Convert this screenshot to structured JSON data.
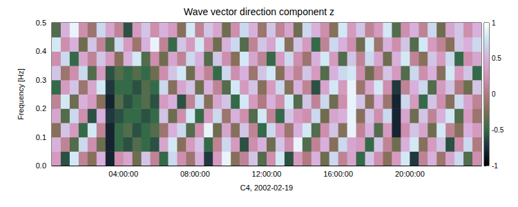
{
  "chart_data": {
    "type": "heatmap",
    "title": "Wave vector direction component z",
    "x_label": "C4, 2002-02-19",
    "y_label": "Frequency [Hz]",
    "x": [
      0.25,
      0.75,
      1.25,
      1.75,
      2.25,
      2.75,
      3.25,
      3.75,
      4.25,
      4.75,
      5.25,
      5.75,
      6.25,
      6.75,
      7.25,
      7.75,
      8.25,
      8.75,
      9.25,
      9.75,
      10.25,
      10.75,
      11.25,
      11.75,
      12.25,
      12.75,
      13.25,
      13.75,
      14.25,
      14.75,
      15.25,
      15.75,
      16.25,
      16.75,
      17.25,
      17.75,
      18.25,
      18.75,
      19.25,
      19.75,
      20.25,
      20.75,
      21.25,
      21.75,
      22.25,
      22.75,
      23.25,
      23.75
    ],
    "y": [
      0.025,
      0.075,
      0.125,
      0.175,
      0.225,
      0.275,
      0.325,
      0.375,
      0.425,
      0.475
    ],
    "values": [
      [
        0.3,
        -0.6,
        0.8,
        0.1,
        -0.2,
        0.5,
        -0.8,
        0.2,
        0.4,
        -0.3,
        0.6,
        0.1,
        -0.5,
        0.7,
        0.2,
        -0.1,
        0.5,
        -0.7,
        0.3,
        0.9,
        -0.2,
        0.1,
        0.6,
        -0.4,
        0.2,
        0.8,
        -0.6,
        0.3,
        0.0,
        0.5,
        -0.3,
        0.7,
        0.1,
        0.4,
        -0.5,
        0.6,
        0.2,
        -0.2,
        0.3,
        0.8,
        -0.7,
        0.1,
        0.5,
        -0.1,
        0.4,
        0.7,
        -0.4,
        0.2
      ],
      [
        0.5,
        0.1,
        -0.4,
        0.7,
        0.2,
        -0.3,
        -0.8,
        -0.5,
        -0.6,
        -0.4,
        -0.5,
        -0.6,
        0.4,
        0.8,
        -0.2,
        0.3,
        0.6,
        -0.5,
        0.1,
        0.7,
        0.3,
        -0.6,
        0.2,
        0.5,
        -0.3,
        0.6,
        0.2,
        0.9,
        -0.4,
        0.1,
        0.5,
        -0.2,
        0.7,
        0.4,
        0.3,
        -0.5,
        0.6,
        0.1,
        -0.3,
        0.5,
        0.8,
        -0.2,
        0.3,
        0.6,
        -0.6,
        0.2,
        0.7,
        0.0
      ],
      [
        -0.2,
        0.6,
        0.3,
        -0.5,
        0.8,
        0.1,
        -0.8,
        -0.5,
        -0.4,
        -0.6,
        -0.5,
        -0.4,
        -0.1,
        0.5,
        0.7,
        -0.4,
        0.2,
        0.9,
        -0.3,
        0.4,
        -0.2,
        0.6,
        0.1,
        -0.5,
        0.7,
        0.3,
        -0.1,
        0.5,
        0.8,
        -0.4,
        0.2,
        0.6,
        -0.2,
        0.9,
        0.1,
        0.5,
        -0.4,
        0.3,
        -0.8,
        0.2,
        0.6,
        0.4,
        -0.3,
        0.8,
        0.1,
        -0.2,
        0.5,
        0.3
      ],
      [
        0.4,
        -0.4,
        0.7,
        0.2,
        -0.6,
        0.5,
        -0.7,
        -0.6,
        -0.5,
        -0.5,
        -0.6,
        -0.5,
        0.6,
        -0.3,
        0.2,
        0.8,
        -0.5,
        0.3,
        0.7,
        -0.1,
        0.5,
        0.2,
        -0.4,
        0.8,
        0.1,
        -0.5,
        0.6,
        0.3,
        0.2,
        0.7,
        -0.3,
        0.4,
        0.5,
        0.9,
        -0.2,
        0.6,
        0.2,
        0.7,
        -0.8,
        0.4,
        -0.3,
        0.6,
        0.1,
        0.5,
        0.8,
        -0.4,
        0.3,
        -0.1
      ],
      [
        0.1,
        0.8,
        -0.3,
        0.5,
        0.3,
        -0.2,
        -0.8,
        -0.4,
        -0.6,
        -0.5,
        -0.4,
        -0.6,
        0.3,
        0.5,
        -0.6,
        0.1,
        0.7,
        -0.2,
        0.4,
        0.6,
        -0.5,
        0.8,
        0.3,
        0.0,
        0.5,
        0.2,
        0.8,
        -0.4,
        0.6,
        0.1,
        0.7,
        -0.3,
        0.2,
        0.9,
        0.6,
        -0.2,
        0.5,
        -0.1,
        -0.8,
        0.7,
        0.3,
        -0.5,
        0.6,
        0.2,
        -0.2,
        0.7,
        0.4,
        0.1
      ],
      [
        -0.5,
        0.3,
        0.6,
        -0.1,
        0.4,
        0.8,
        -0.7,
        -0.5,
        -0.5,
        -0.6,
        -0.4,
        -0.5,
        0.7,
        -0.2,
        0.4,
        0.6,
        -0.3,
        0.5,
        0.1,
        -0.4,
        0.8,
        0.3,
        0.6,
        -0.2,
        0.3,
        0.7,
        -0.2,
        0.5,
        0.1,
        -0.6,
        0.4,
        0.8,
        0.3,
        0.9,
        -0.1,
        0.4,
        0.8,
        0.2,
        -0.7,
        0.1,
        0.5,
        0.7,
        -0.4,
        0.3,
        0.6,
        0.0,
        -0.3,
        0.6
      ],
      [
        0.6,
        -0.1,
        0.2,
        0.7,
        -0.4,
        0.3,
        -0.6,
        -0.4,
        -0.5,
        -0.4,
        -0.5,
        -0.3,
        0.2,
        0.6,
        0.8,
        -0.3,
        0.4,
        0.1,
        -0.5,
        0.7,
        0.2,
        0.5,
        -0.1,
        0.6,
        0.8,
        -0.2,
        0.4,
        0.1,
        0.6,
        0.3,
        -0.4,
        0.5,
        0.7,
        0.8,
        0.2,
        -0.3,
        0.1,
        0.6,
        0.3,
        -0.4,
        0.7,
        0.2,
        0.5,
        -0.2,
        0.8,
        0.3,
        0.6,
        -0.5
      ],
      [
        0.2,
        0.7,
        -0.5,
        0.4,
        0.1,
        0.6,
        0.3,
        -0.2,
        0.5,
        0.8,
        -0.4,
        0.2,
        -0.3,
        0.4,
        0.1,
        0.7,
        0.5,
        -0.4,
        0.6,
        0.2,
        -0.2,
        0.8,
        0.4,
        0.1,
        -0.5,
        0.3,
        0.7,
        0.2,
        -0.1,
        0.5,
        0.8,
        0.3,
        -0.4,
        0.6,
        0.1,
        0.7,
        0.4,
        -0.3,
        0.5,
        0.8,
        0.1,
        -0.2,
        0.6,
        0.3,
        0.7,
        -0.5,
        0.2,
        0.4
      ],
      [
        0.8,
        0.2,
        0.5,
        -0.3,
        0.6,
        0.1,
        -0.4,
        0.7,
        0.3,
        -0.1,
        0.5,
        0.9,
        0.1,
        -0.5,
        0.6,
        0.3,
        0.8,
        0.2,
        -0.3,
        0.5,
        0.7,
        -0.4,
        0.1,
        0.6,
        0.4,
        0.8,
        -0.2,
        0.6,
        0.3,
        -0.5,
        0.1,
        0.7,
        0.5,
        0.2,
        -0.3,
        0.8,
        -0.1,
        0.5,
        0.2,
        0.6,
        -0.4,
        0.8,
        0.3,
        0.1,
        -0.2,
        0.6,
        0.5,
        0.7
      ],
      [
        -0.4,
        0.5,
        0.9,
        0.2,
        -0.1,
        0.7,
        0.4,
        0.1,
        -0.6,
        0.3,
        0.6,
        0.2,
        0.5,
        0.3,
        -0.2,
        0.8,
        0.1,
        0.6,
        0.4,
        -0.3,
        0.2,
        0.7,
        0.5,
        -0.1,
        0.6,
        0.1,
        0.4,
        -0.3,
        0.7,
        0.5,
        0.2,
        -0.2,
        0.8,
        0.3,
        0.6,
        0.1,
        0.3,
        0.8,
        -0.4,
        0.2,
        0.5,
        0.1,
        0.7,
        -0.3,
        0.4,
        0.6,
        0.2,
        0.5
      ]
    ],
    "xlim": [
      0,
      24
    ],
    "xticks": [
      {
        "value": 4,
        "label": "04:00:00"
      },
      {
        "value": 8,
        "label": "08:00:00"
      },
      {
        "value": 12,
        "label": "12:00:00"
      },
      {
        "value": 16,
        "label": "16:00:00"
      },
      {
        "value": 20,
        "label": "20:00:00"
      }
    ],
    "ylim": [
      0,
      0.5
    ],
    "yticks": [
      {
        "value": 0,
        "label": "0.0"
      },
      0.1,
      0.2,
      0.3,
      0.4,
      0.5
    ],
    "colorbar_lim": [
      -1,
      1
    ],
    "colorbar_ticks": [
      -1,
      -0.5,
      0,
      0.5,
      1
    ]
  }
}
